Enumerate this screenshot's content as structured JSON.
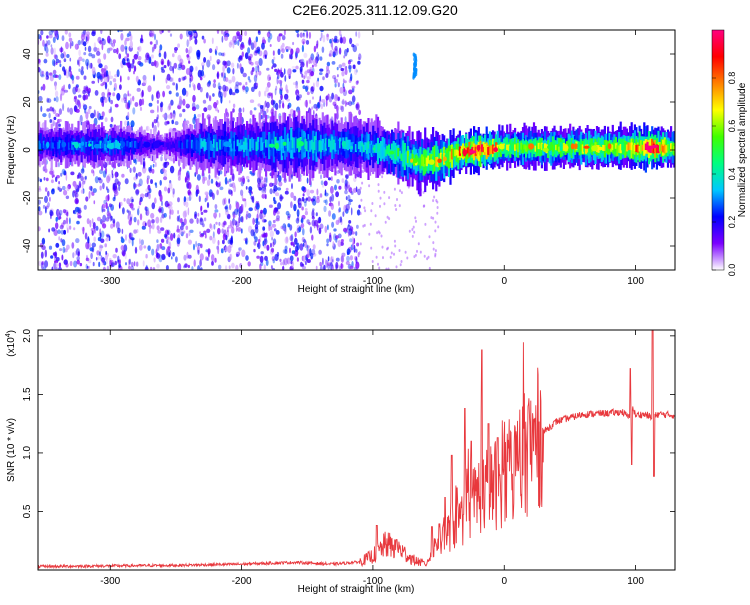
{
  "title": "C2E6.2025.311.12.09.G20",
  "chart_data": [
    {
      "type": "heatmap",
      "xlabel": "Height of straight line (km)",
      "ylabel": "Frequency (Hz)",
      "xlim": [
        -355,
        130
      ],
      "ylim": [
        -50,
        50
      ],
      "x_ticks": [
        -300,
        -200,
        -100,
        0,
        100
      ],
      "y_ticks": [
        -40,
        -20,
        0,
        20,
        40
      ],
      "colorbar": {
        "label": "Normalized spectral amplitude",
        "range": [
          0,
          1
        ],
        "ticks": [
          0.0,
          0.2,
          0.4,
          0.6,
          0.8
        ],
        "tick_labels": [
          "0.0",
          "0.2",
          "0.4",
          "0.6",
          "0.8"
        ],
        "colors": [
          "#ffffff",
          "#7b00ff",
          "#0000ff",
          "#00c8ff",
          "#00ff80",
          "#40ff00",
          "#ffff00",
          "#ff8000",
          "#ff0000",
          "#ff0080"
        ]
      },
      "band": {
        "points": [
          {
            "x": -355,
            "center": 2,
            "width": 3,
            "level": 0.25
          },
          {
            "x": -300,
            "center": 2,
            "width": 3,
            "level": 0.3
          },
          {
            "x": -260,
            "center": 2,
            "width": 2,
            "level": 0.15
          },
          {
            "x": -230,
            "center": 2,
            "width": 4,
            "level": 0.3
          },
          {
            "x": -200,
            "center": 2,
            "width": 4,
            "level": 0.3
          },
          {
            "x": -160,
            "center": 2,
            "width": 5,
            "level": 0.35
          },
          {
            "x": -120,
            "center": 2,
            "width": 4,
            "level": 0.3
          },
          {
            "x": -100,
            "center": 1,
            "width": 4,
            "level": 0.35
          },
          {
            "x": -80,
            "center": -2,
            "width": 4,
            "level": 0.45
          },
          {
            "x": -65,
            "center": -5,
            "width": 4,
            "level": 0.5
          },
          {
            "x": -50,
            "center": -4,
            "width": 4,
            "level": 0.6
          },
          {
            "x": -35,
            "center": -1,
            "width": 3,
            "level": 0.7
          },
          {
            "x": -20,
            "center": 0,
            "width": 3,
            "level": 0.9
          },
          {
            "x": 0,
            "center": 1,
            "width": 3,
            "level": 0.55
          },
          {
            "x": 40,
            "center": 1,
            "width": 3,
            "level": 0.55
          },
          {
            "x": 90,
            "center": 1,
            "width": 3,
            "level": 0.6
          },
          {
            "x": 110,
            "center": 1,
            "width": 3,
            "level": 0.9
          },
          {
            "x": 130,
            "center": 1,
            "width": 3,
            "level": 0.55
          }
        ],
        "noise_x_range": [
          -355,
          -110
        ],
        "noise_level": 0.15,
        "feature": {
          "x": -68,
          "y_range": [
            30,
            40
          ],
          "level": 0.3
        }
      }
    },
    {
      "type": "line",
      "xlabel": "Height of straight line (km)",
      "ylabel": "SNR (10 * v/v)",
      "y_multiplier_label": "(x10",
      "y_multiplier_exp": "4",
      "y_multiplier_close": ")",
      "xlim": [
        -355,
        130
      ],
      "ylim": [
        0,
        20500
      ],
      "x_ticks": [
        -300,
        -200,
        -100,
        0,
        100
      ],
      "y_ticks": [
        5000,
        10000,
        15000,
        20000
      ],
      "y_tick_labels": [
        "0.5",
        "1.0",
        "1.5",
        "2.0"
      ],
      "color": "#e8383d",
      "series": [
        {
          "x": [
            -355,
            -300,
            -250,
            -200,
            -160,
            -130,
            -110,
            -100,
            -90,
            -80,
            -70,
            -60,
            -50,
            -40,
            -30,
            -20,
            -10,
            0,
            10,
            20,
            30,
            40,
            60,
            80,
            90,
            95,
            98,
            100,
            105,
            110,
            113,
            116,
            120,
            130
          ],
          "y": [
            300,
            350,
            400,
            500,
            650,
            500,
            700,
            1200,
            2200,
            1800,
            900,
            500,
            2500,
            3500,
            4500,
            6500,
            7000,
            8000,
            9000,
            10500,
            11800,
            12700,
            13300,
            13400,
            13500,
            13000,
            13800,
            13200,
            13300,
            13200,
            12800,
            13300,
            13300,
            13200
          ]
        }
      ],
      "spikes": [
        {
          "x": -97,
          "y": 3800
        },
        {
          "x": -82,
          "y": 2600
        },
        {
          "x": -55,
          "y": 3700
        },
        {
          "x": -45,
          "y": 6200
        },
        {
          "x": -40,
          "y": 9800
        },
        {
          "x": -36,
          "y": 7000
        },
        {
          "x": -30,
          "y": 13800
        },
        {
          "x": -25,
          "y": 11000
        },
        {
          "x": -17,
          "y": 18800
        },
        {
          "x": -12,
          "y": 12500
        },
        {
          "x": -5,
          "y": 11300
        },
        {
          "x": 96,
          "y": 17200
        },
        {
          "x": 97,
          "y": 9000
        },
        {
          "x": 113,
          "y": 20500
        },
        {
          "x": 114,
          "y": 8000
        }
      ]
    }
  ]
}
